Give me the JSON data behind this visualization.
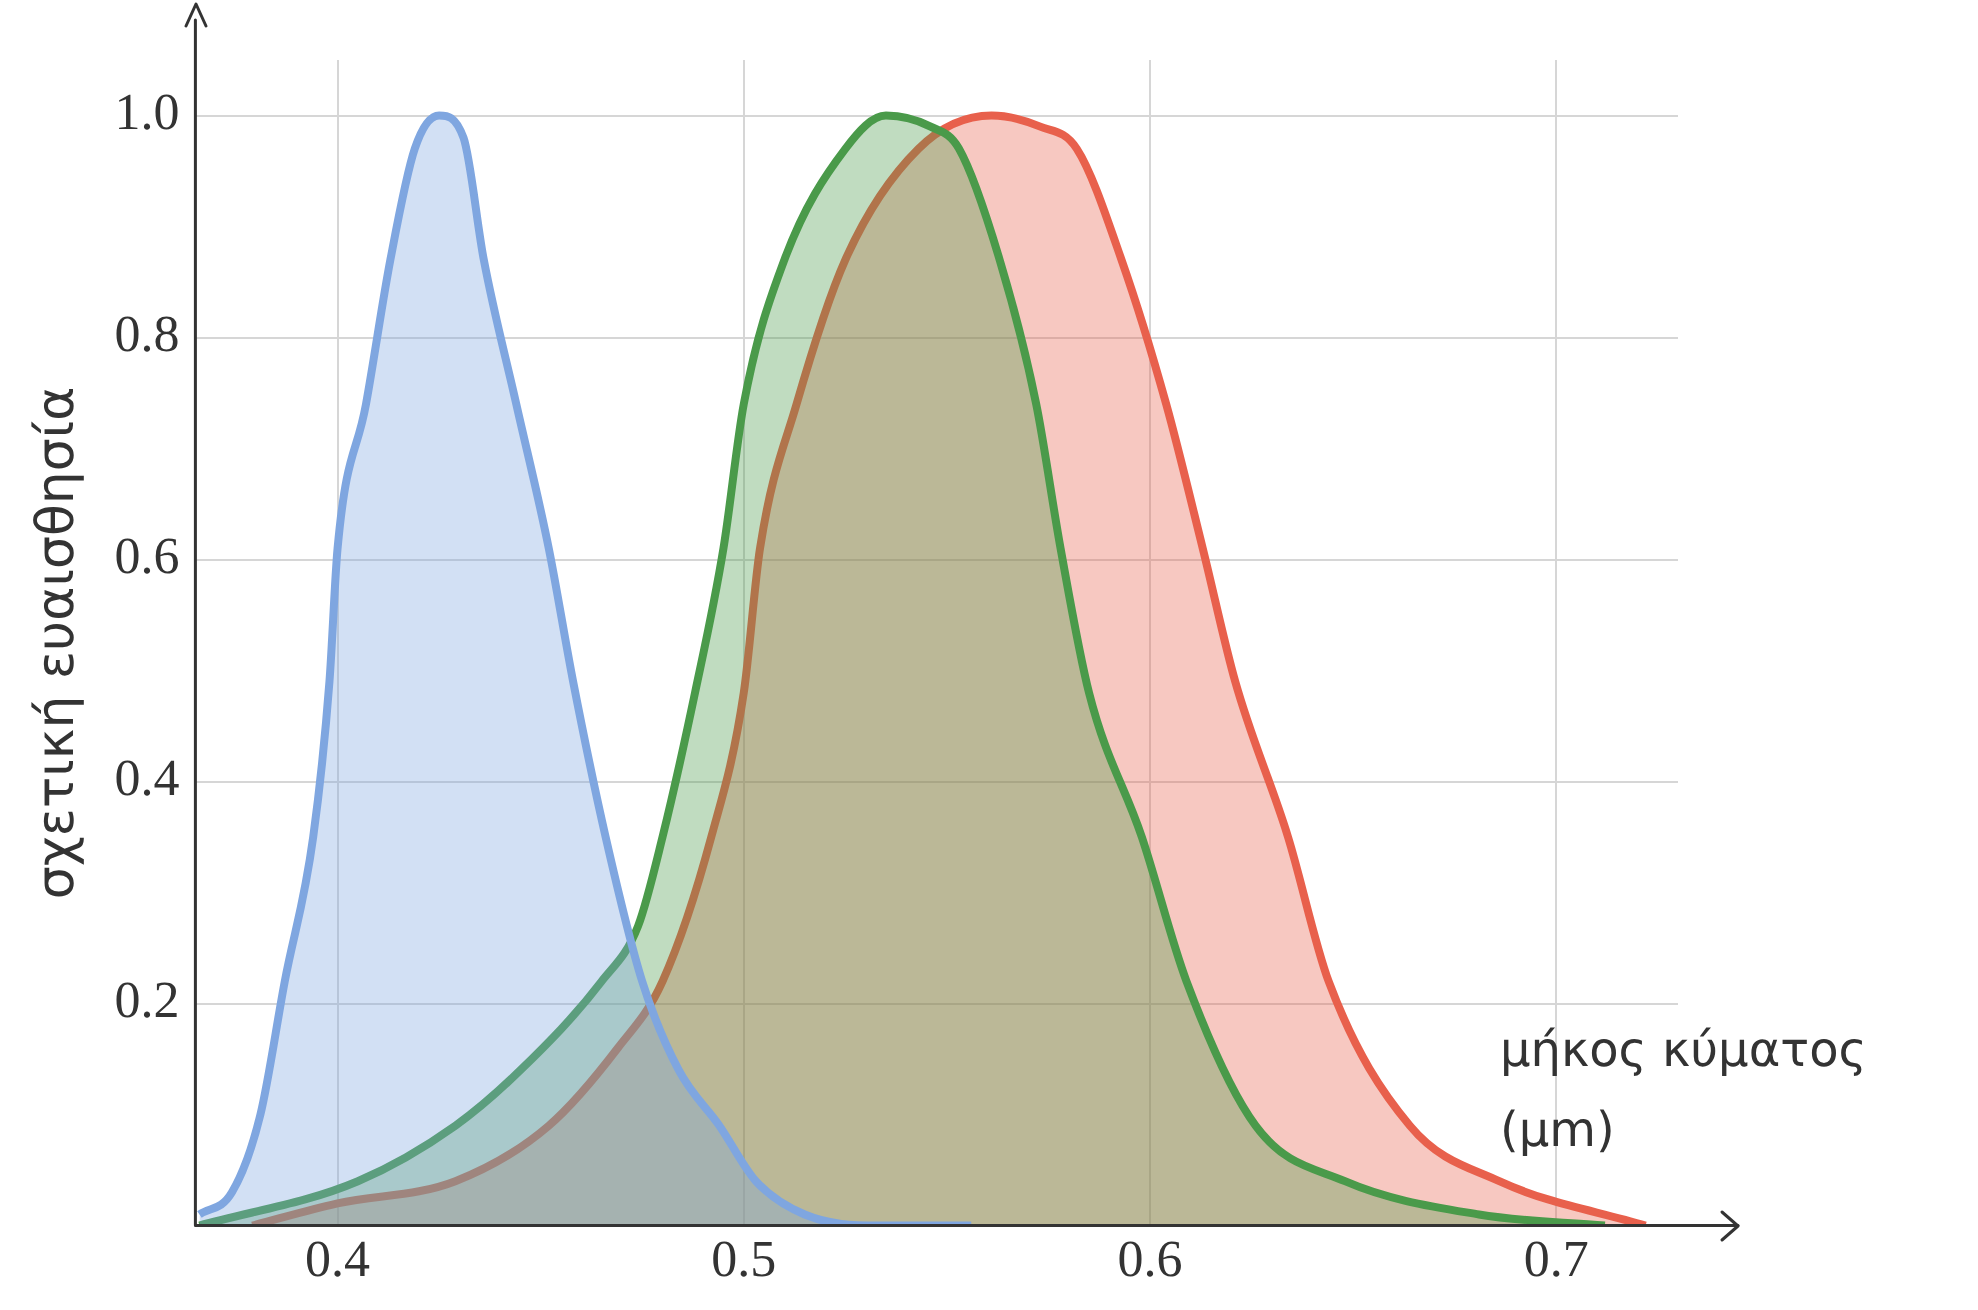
{
  "chart_data": {
    "type": "area",
    "xlabel": "μήκος κύματος (μm)",
    "ylabel": "σχετική ευαισθησία",
    "xlim": [
      0.365,
      0.73
    ],
    "ylim": [
      0,
      1.05
    ],
    "xticks": [
      0.4,
      0.5,
      0.6,
      0.7
    ],
    "yticks": [
      0.2,
      0.4,
      0.6,
      0.8,
      {
        "value": 1,
        "label": "1.0"
      }
    ],
    "grid": true,
    "series": [
      {
        "color": "#7fa6e0",
        "x": [
          0.366,
          0.374,
          0.381,
          0.387,
          0.394,
          0.398,
          0.4,
          0.407,
          0.413,
          0.419,
          0.425,
          0.431,
          0.436,
          0.444,
          0.452,
          0.458,
          0.466,
          0.475,
          0.484,
          0.494,
          0.503,
          0.515,
          0.533,
          0.556
        ],
        "values": [
          0.01,
          0.03,
          0.1,
          0.22,
          0.35,
          0.49,
          0.61,
          0.74,
          0.87,
          0.97,
          1.0,
          0.98,
          0.87,
          0.74,
          0.61,
          0.49,
          0.35,
          0.22,
          0.14,
          0.09,
          0.04,
          0.01,
          0,
          0
        ]
      },
      {
        "color": "#4a9a4a",
        "x": [
          0.366,
          0.405,
          0.429,
          0.445,
          0.465,
          0.474,
          0.48,
          0.488,
          0.495,
          0.5,
          0.51,
          0.525,
          0.535,
          0.546,
          0.553,
          0.563,
          0.572,
          0.578,
          0.585,
          0.598,
          0.609,
          0.626,
          0.648,
          0.681,
          0.712
        ],
        "values": [
          0,
          0.04,
          0.09,
          0.14,
          0.22,
          0.27,
          0.35,
          0.48,
          0.61,
          0.74,
          0.87,
          0.97,
          1.0,
          0.99,
          0.97,
          0.87,
          0.74,
          0.61,
          0.48,
          0.35,
          0.22,
          0.09,
          0.04,
          0.01,
          0
        ]
      },
      {
        "color": "#e8604c",
        "x": [
          0.379,
          0.4,
          0.429,
          0.452,
          0.469,
          0.48,
          0.492,
          0.5,
          0.504,
          0.513,
          0.525,
          0.543,
          0.561,
          0.573,
          0.582,
          0.593,
          0.604,
          0.613,
          0.621,
          0.634,
          0.644,
          0.664,
          0.686,
          0.722
        ],
        "values": [
          0,
          0.02,
          0.04,
          0.09,
          0.16,
          0.22,
          0.35,
          0.48,
          0.61,
          0.74,
          0.87,
          0.97,
          1.0,
          0.99,
          0.97,
          0.87,
          0.74,
          0.61,
          0.49,
          0.35,
          0.22,
          0.09,
          0.04,
          0
        ]
      }
    ]
  }
}
